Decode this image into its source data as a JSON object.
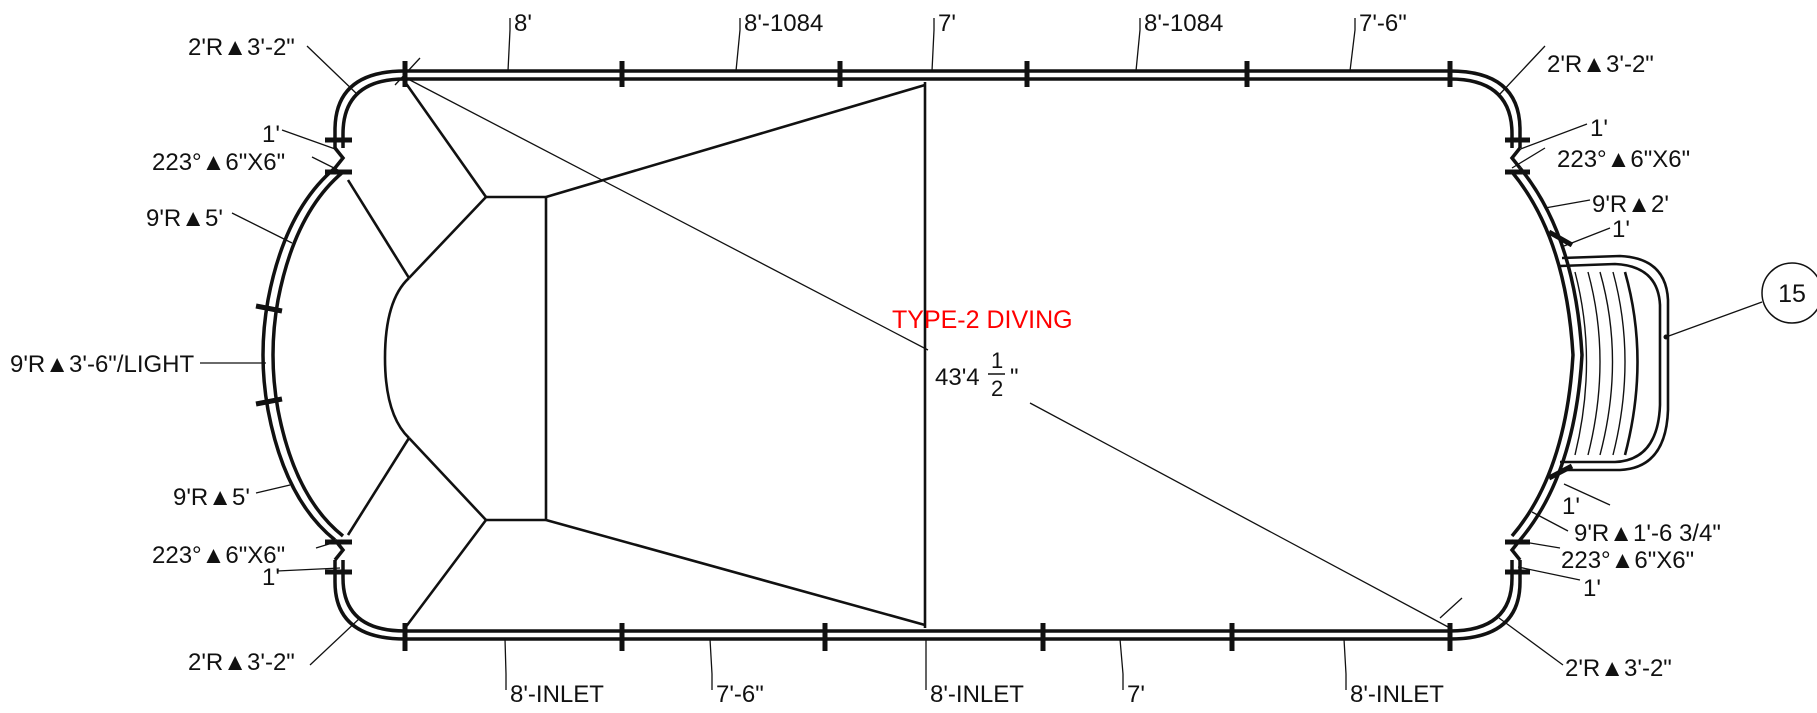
{
  "drawing": {
    "title": "TYPE-2 DIVING",
    "title_color": "#ff0000",
    "diagonal_whole": "43'4",
    "diagonal_num": "1",
    "diagonal_den": "2",
    "diagonal_unit": "\"",
    "callout_number": "15"
  },
  "top_labels": [
    "8'",
    "8'-1084",
    "7'",
    "8'-1084",
    "7'-6\""
  ],
  "bottom_labels": [
    "8'-INLET",
    "7'-6\"",
    "8'-INLET",
    "7'",
    "8'-INLET"
  ],
  "left_labels": {
    "corner_top": "2'R▲3'-2\"",
    "step_top": "1'",
    "angle_top": "223°▲6\"X6\"",
    "arc_top": "9'R▲5'",
    "arc_mid": "9'R▲3'-6\"/LIGHT",
    "arc_bottom": "9'R▲5'",
    "angle_bottom": "223°▲6\"X6\"",
    "step_bottom": "1'",
    "corner_bottom": "2'R▲3'-2\""
  },
  "right_labels": {
    "corner_top": "2'R▲3'-2\"",
    "step_top": "1'",
    "angle_top": "223°▲6\"X6\"",
    "arc_top": "9'R▲2'",
    "step_top2": "1'",
    "step_bottom2": "1'",
    "arc_bottom": "9'R▲1'-6 3/4\"",
    "angle_bottom": "223°▲6\"X6\"",
    "step_bottom": "1'",
    "corner_bottom": "2'R▲3'-2\""
  }
}
